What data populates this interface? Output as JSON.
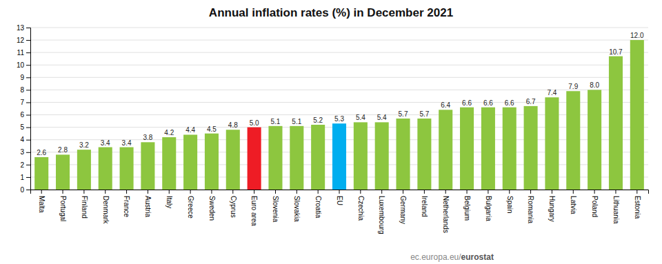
{
  "chart_data": {
    "type": "bar",
    "title": "Annual inflation rates (%) in December 2021",
    "categories": [
      "Malta",
      "Portugal",
      "Finland",
      "Denmark",
      "France",
      "Austria",
      "Italy",
      "Greece",
      "Sweden",
      "Cyprus",
      "Euro area",
      "Slovenia",
      "Slovakia",
      "Croatia",
      "EU",
      "Czechia",
      "Luxembourg",
      "Germany",
      "Ireland",
      "Netherlands",
      "Belgium",
      "Bulgaria",
      "Spain",
      "Romania",
      "Hungary",
      "Latvia",
      "Poland",
      "Lithuania",
      "Estonia"
    ],
    "values": [
      2.6,
      2.8,
      3.2,
      3.4,
      3.4,
      3.8,
      4.2,
      4.4,
      4.5,
      4.8,
      5.0,
      5.1,
      5.1,
      5.2,
      5.3,
      5.4,
      5.4,
      5.7,
      5.7,
      6.4,
      6.6,
      6.6,
      6.6,
      6.7,
      7.4,
      7.9,
      8.0,
      10.7,
      12.0
    ],
    "value_labels": [
      "2.6",
      "2.8",
      "3.2",
      "3.4",
      "3.4",
      "3.8",
      "4.2",
      "4.4",
      "4.5",
      "4.8",
      "5.0",
      "5.1",
      "5.1",
      "5.2",
      "5.3",
      "5.4",
      "5.4",
      "5.7",
      "5.7",
      "6.4",
      "6.6",
      "6.6",
      "6.6",
      "6.7",
      "7.4",
      "7.9",
      "8.0",
      "10.7",
      "12.0"
    ],
    "colors": [
      "#8dc63f",
      "#8dc63f",
      "#8dc63f",
      "#8dc63f",
      "#8dc63f",
      "#8dc63f",
      "#8dc63f",
      "#8dc63f",
      "#8dc63f",
      "#8dc63f",
      "#ee1c25",
      "#8dc63f",
      "#8dc63f",
      "#8dc63f",
      "#00aeef",
      "#8dc63f",
      "#8dc63f",
      "#8dc63f",
      "#8dc63f",
      "#8dc63f",
      "#8dc63f",
      "#8dc63f",
      "#8dc63f",
      "#8dc63f",
      "#8dc63f",
      "#8dc63f",
      "#8dc63f",
      "#8dc63f",
      "#8dc63f"
    ],
    "ylim": [
      0,
      13
    ],
    "yticks": [
      0,
      1,
      2,
      3,
      4,
      5,
      6,
      7,
      8,
      9,
      10,
      11,
      12,
      13
    ],
    "grid": true,
    "data_labels": true,
    "annotations": [
      "ec.europa.eu/",
      "eurostat"
    ]
  }
}
